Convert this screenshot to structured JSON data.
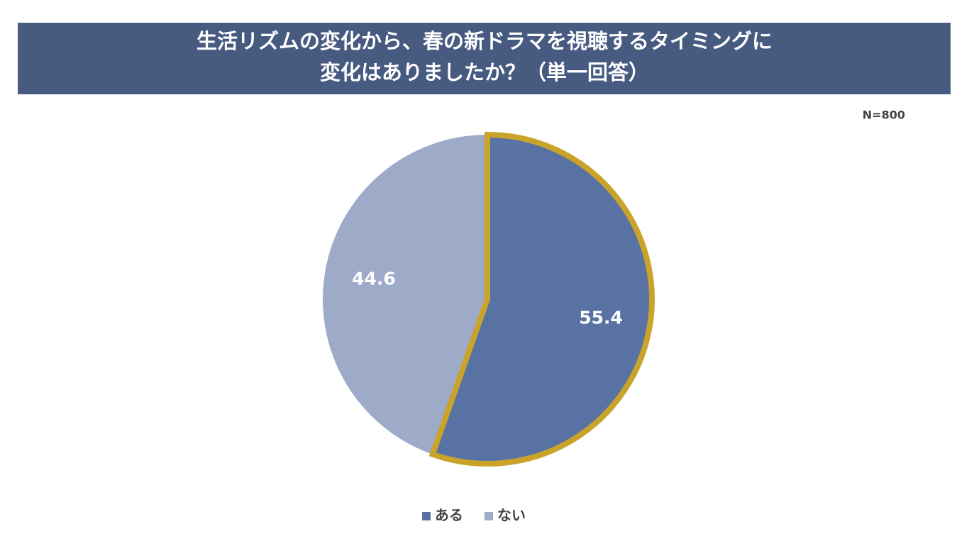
{
  "chart_data": {
    "type": "pie",
    "title": [
      "生活リズムの変化から、春の新ドラマを視聴するタイミングに",
      "変化はありましたか？（単一回答）"
    ],
    "note": "N=800",
    "categories": [
      "ある",
      "ない"
    ],
    "values": [
      55.4,
      44.6
    ],
    "colors": [
      "#5872a4",
      "#9dabc8"
    ],
    "edge_colors": [
      "#c9a32a",
      "#9dabc8"
    ],
    "legend": "bottom"
  }
}
